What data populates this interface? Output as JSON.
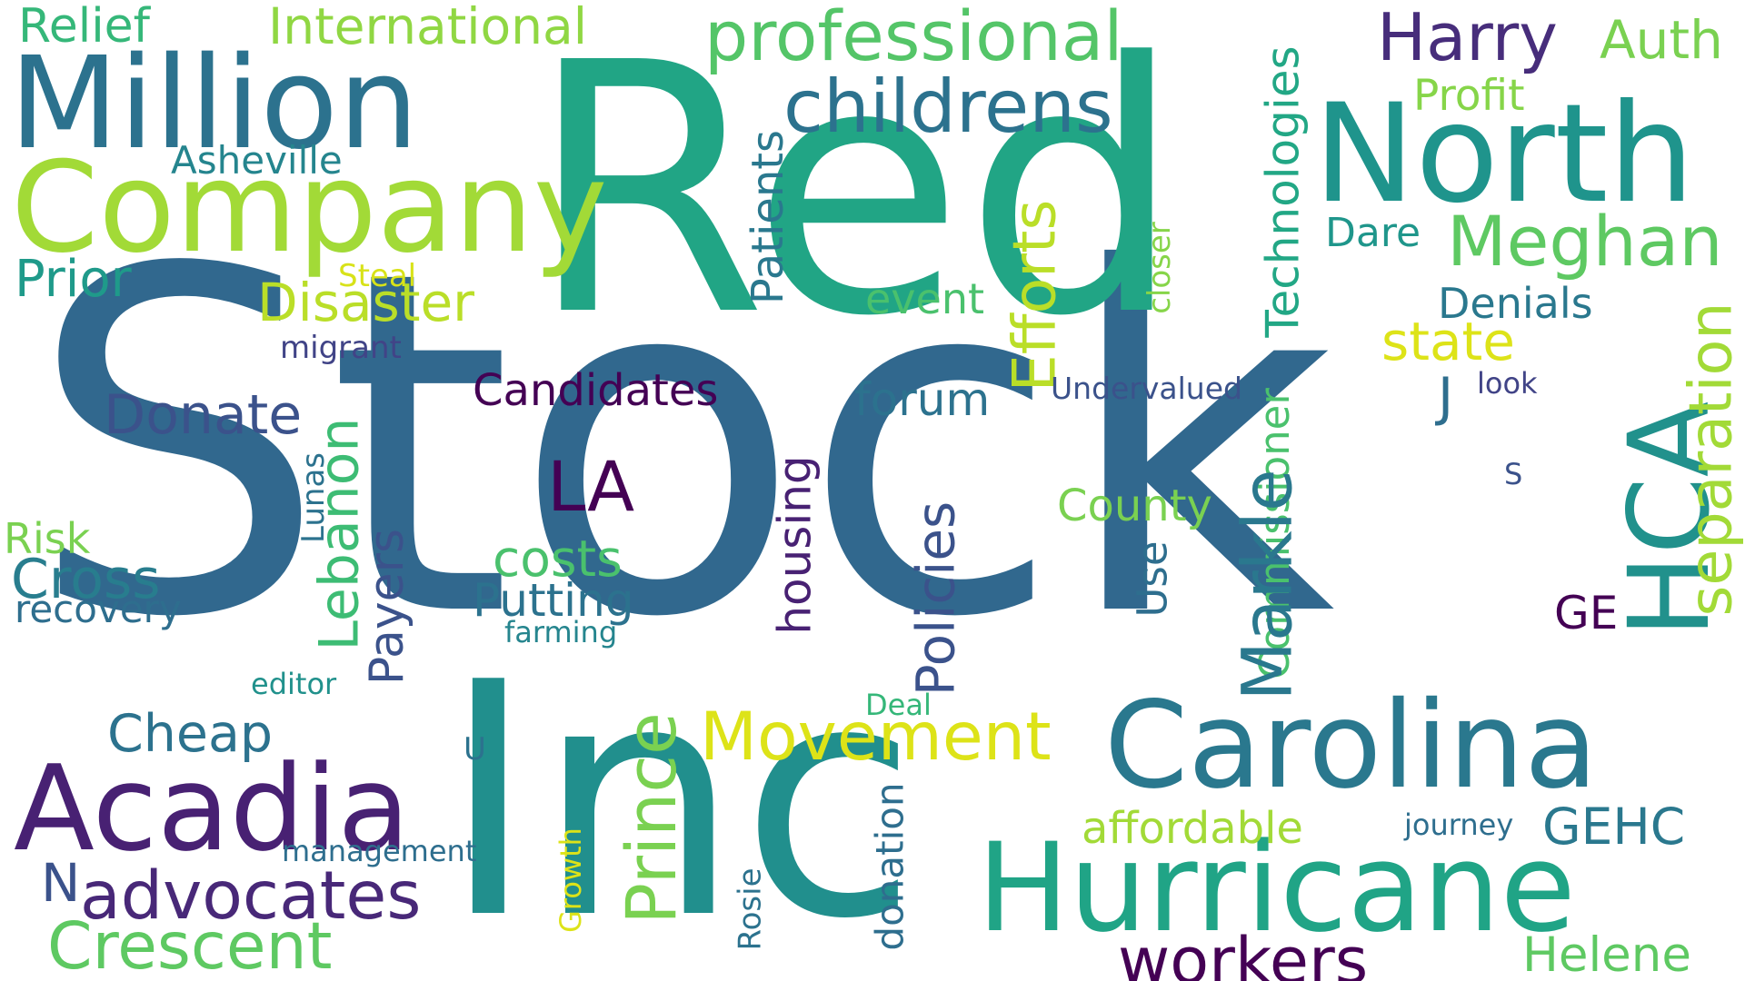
{
  "words": [
    {
      "text": "Stock",
      "color": "#31688e"
    },
    {
      "text": "Red",
      "color": "#21a585"
    },
    {
      "text": "Inc",
      "color": "#218f8d"
    },
    {
      "text": "Million",
      "color": "#2c728e"
    },
    {
      "text": "Company",
      "color": "#a2da37"
    },
    {
      "text": "North",
      "color": "#1f948c"
    },
    {
      "text": "Carolina",
      "color": "#2a788e"
    },
    {
      "text": "Hurricane",
      "color": "#20a486"
    },
    {
      "text": "Acadia",
      "color": "#482173"
    },
    {
      "text": "HCA",
      "color": "#21918c"
    },
    {
      "text": "Relief",
      "color": "#35b779"
    },
    {
      "text": "International",
      "color": "#90d743"
    },
    {
      "text": "professional",
      "color": "#54c568"
    },
    {
      "text": "childrens",
      "color": "#2c728e"
    },
    {
      "text": "Harry",
      "color": "#472d7b"
    },
    {
      "text": "Auth",
      "color": "#7ad151"
    },
    {
      "text": "Profit",
      "color": "#86d549"
    },
    {
      "text": "Asheville",
      "color": "#25858e"
    },
    {
      "text": "Technologies",
      "color": "#22a785"
    },
    {
      "text": "Patients",
      "color": "#2a788e"
    },
    {
      "text": "Efforts",
      "color": "#bade28"
    },
    {
      "text": "closer",
      "color": "#86d549"
    },
    {
      "text": "Dare",
      "color": "#1f968b"
    },
    {
      "text": "Meghan",
      "color": "#5ec962"
    },
    {
      "text": "Prior",
      "color": "#1f9a8a"
    },
    {
      "text": "Steal",
      "color": "#d8e219"
    },
    {
      "text": "Disaster",
      "color": "#bade28"
    },
    {
      "text": "event",
      "color": "#4ac16d"
    },
    {
      "text": "Denials",
      "color": "#2a788e"
    },
    {
      "text": "separation",
      "color": "#a2da37"
    },
    {
      "text": "state",
      "color": "#dde318"
    },
    {
      "text": "migrant",
      "color": "#414487"
    },
    {
      "text": "Donate",
      "color": "#3b528b"
    },
    {
      "text": "Lebanon",
      "color": "#3dbc74"
    },
    {
      "text": "Candidates",
      "color": "#440154"
    },
    {
      "text": "Undervalued",
      "color": "#3b528b"
    },
    {
      "text": "forum",
      "color": "#2c728e"
    },
    {
      "text": "look",
      "color": "#414487"
    },
    {
      "text": "J",
      "color": "#2e6e8e"
    },
    {
      "text": "Commissioner",
      "color": "#4ac16d"
    },
    {
      "text": "LA",
      "color": "#440154"
    },
    {
      "text": "Lunas",
      "color": "#2c728e"
    },
    {
      "text": "Policies",
      "color": "#3b528b"
    },
    {
      "text": "Markle",
      "color": "#2a788e"
    },
    {
      "text": "housing",
      "color": "#482173"
    },
    {
      "text": "County",
      "color": "#7ad151"
    },
    {
      "text": "S",
      "color": "#3b528b"
    },
    {
      "text": "Risk",
      "color": "#7ad151"
    },
    {
      "text": "Payers",
      "color": "#3b528b"
    },
    {
      "text": "costs",
      "color": "#4ac16d"
    },
    {
      "text": "Cross",
      "color": "#287d8e"
    },
    {
      "text": "Use",
      "color": "#2e6e8e"
    },
    {
      "text": "recovery",
      "color": "#2e6e8e"
    },
    {
      "text": "Putting",
      "color": "#2c728e"
    },
    {
      "text": "farming",
      "color": "#25858e"
    },
    {
      "text": "GE",
      "color": "#440154"
    },
    {
      "text": "editor",
      "color": "#21918c"
    },
    {
      "text": "Deal",
      "color": "#35b779"
    },
    {
      "text": "Cheap",
      "color": "#2c728e"
    },
    {
      "text": "Prince",
      "color": "#7ad151"
    },
    {
      "text": "Movement",
      "color": "#dde318"
    },
    {
      "text": "U",
      "color": "#2c728e"
    },
    {
      "text": "affordable",
      "color": "#a2da37"
    },
    {
      "text": "journey",
      "color": "#2e6e8e"
    },
    {
      "text": "GEHC",
      "color": "#2a788e"
    },
    {
      "text": "management",
      "color": "#2e6e8e"
    },
    {
      "text": "donation",
      "color": "#2e6e8e"
    },
    {
      "text": "Growth",
      "color": "#dde318"
    },
    {
      "text": "N",
      "color": "#3b528b"
    },
    {
      "text": "advocates",
      "color": "#482878"
    },
    {
      "text": "Rosie",
      "color": "#2c728e"
    },
    {
      "text": "Crescent",
      "color": "#5ec962"
    },
    {
      "text": "workers",
      "color": "#440154"
    },
    {
      "text": "Helene",
      "color": "#5ec962"
    }
  ]
}
